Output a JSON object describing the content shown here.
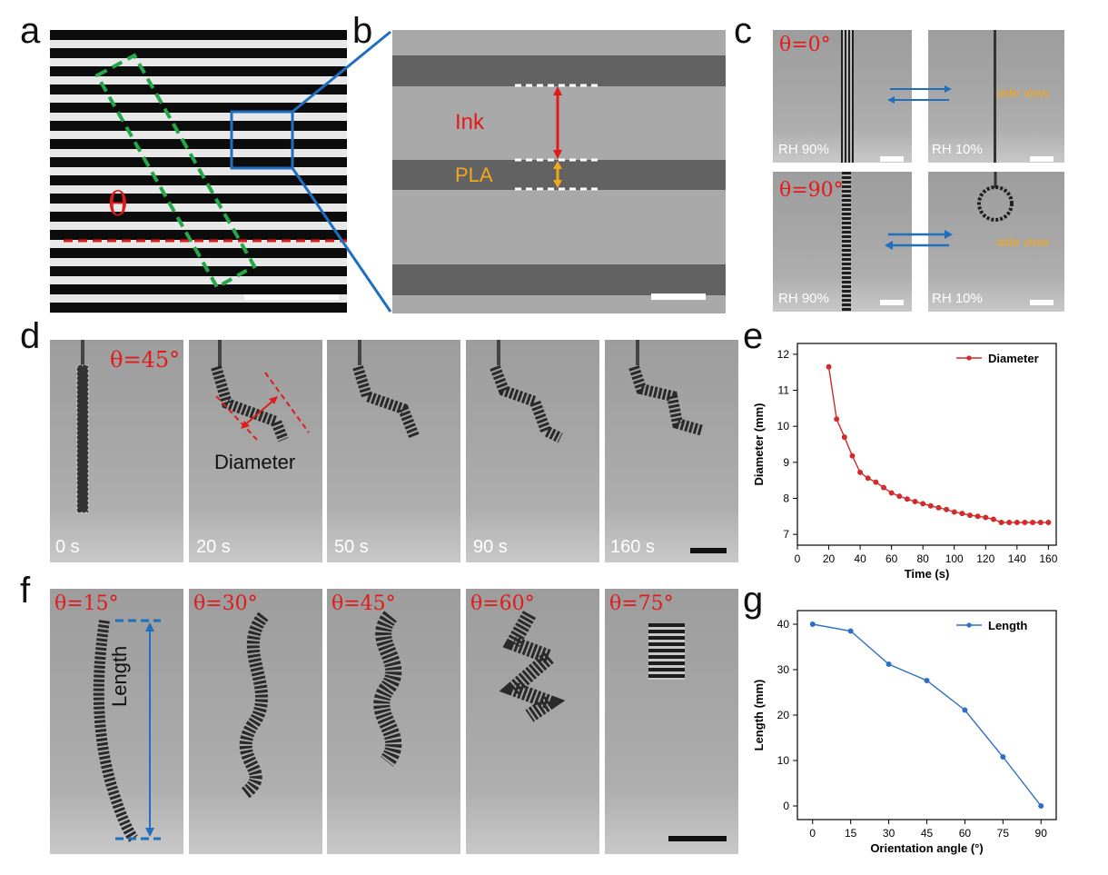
{
  "colors": {
    "red": "#e11b1b",
    "blue": "#1f6fc0",
    "gold": "#f2a71c",
    "green": "#26a84a",
    "line_red": "#d22b2b",
    "line_blue": "#2f6fc5"
  },
  "panels": {
    "a": {
      "label": "a",
      "theta": "θ"
    },
    "b": {
      "label": "b",
      "ink": "Ink",
      "pla": "PLA"
    },
    "c": {
      "label": "c",
      "theta0": "θ=0°",
      "theta90": "θ=90°",
      "rh_high_1": "RH 90%",
      "rh_low_1": "RH 10%",
      "rh_high_2": "RH 90%",
      "rh_low_2": "RH 10%",
      "side_view_1": "side view",
      "side_view_2": "side view"
    },
    "d": {
      "label": "d",
      "theta": "θ=45°",
      "diameter": "Diameter",
      "times": [
        "0 s",
        "20 s",
        "50 s",
        "90 s",
        "160 s"
      ]
    },
    "e": {
      "label": "e"
    },
    "f": {
      "label": "f",
      "thetas": [
        "θ=15°",
        "θ=30°",
        "θ=45°",
        "θ=60°",
        "θ=75°"
      ],
      "length": "Length"
    },
    "g": {
      "label": "g"
    }
  },
  "chart_data": [
    {
      "id": "e",
      "type": "line",
      "xlabel": "Time (s)",
      "ylabel": "Diameter (mm)",
      "xlim": [
        0,
        165
      ],
      "ylim": [
        6.7,
        12.3
      ],
      "xticks": [
        0,
        20,
        40,
        60,
        80,
        100,
        120,
        140,
        160
      ],
      "yticks": [
        7,
        8,
        9,
        10,
        11,
        12
      ],
      "legend": "top-right",
      "series": [
        {
          "name": "Diameter",
          "color": "#d22b2b",
          "x": [
            20,
            25,
            30,
            35,
            40,
            45,
            50,
            55,
            60,
            65,
            70,
            75,
            80,
            85,
            90,
            95,
            100,
            105,
            110,
            115,
            120,
            125,
            130,
            135,
            140,
            145,
            150,
            155,
            160
          ],
          "y": [
            11.65,
            10.2,
            9.7,
            9.18,
            8.72,
            8.56,
            8.45,
            8.3,
            8.15,
            8.06,
            7.98,
            7.91,
            7.85,
            7.79,
            7.74,
            7.69,
            7.62,
            7.58,
            7.53,
            7.5,
            7.47,
            7.42,
            7.33,
            7.33,
            7.33,
            7.33,
            7.33,
            7.33,
            7.33
          ]
        }
      ]
    },
    {
      "id": "g",
      "type": "line",
      "xlabel": "Orientation angle (°)",
      "ylabel": "Length (mm)",
      "xlim": [
        -6,
        96
      ],
      "ylim": [
        -3,
        43
      ],
      "xticks": [
        0,
        15,
        30,
        45,
        60,
        75,
        90
      ],
      "yticks": [
        0,
        10,
        20,
        30,
        40
      ],
      "legend": "top-right",
      "series": [
        {
          "name": "Length",
          "color": "#2f6fc5",
          "x": [
            0,
            15,
            30,
            45,
            60,
            75,
            90
          ],
          "y": [
            40,
            38.5,
            31.2,
            27.6,
            21.1,
            10.8,
            0
          ]
        }
      ]
    }
  ]
}
